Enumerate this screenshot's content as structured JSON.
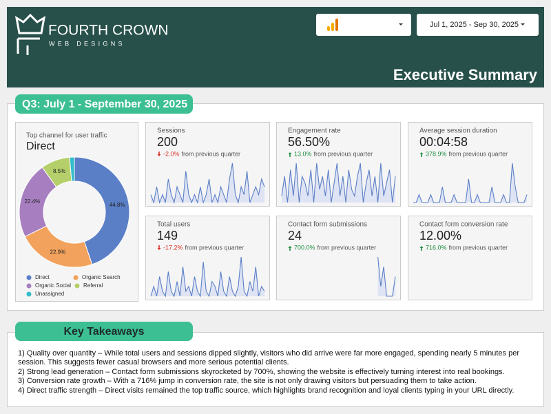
{
  "header": {
    "brand": "FOURTH CROWN",
    "tagline": "WEB DESIGNS",
    "date_range": "Jul 1, 2025 - Sep 30, 2025",
    "title": "Executive Summary"
  },
  "summary": {
    "heading": "Q3: July 1 - September 30, 2025",
    "top_channel": {
      "caption": "Top channel for user traffic",
      "value": "Direct",
      "chart": {
        "type": "donut",
        "categories": [
          "Direct",
          "Organic Search",
          "Organic Social",
          "Referral",
          "Unassigned"
        ],
        "values": [
          44.8,
          22.9,
          22.4,
          8.5,
          1.4
        ],
        "value_labels": [
          "44.8%",
          "22.9%",
          "22.4%",
          "8.5%",
          null
        ],
        "colors": [
          "#5b7fc7",
          "#f2a25c",
          "#a77fc0",
          "#b5cf6b",
          "#33bccc"
        ]
      }
    },
    "cards": [
      {
        "title": "Sessions",
        "value": "200",
        "change": "-2.0%",
        "comparison": "from previous quarter",
        "sparkline": [
          2,
          1,
          3,
          1,
          2,
          1,
          4,
          2,
          1,
          3,
          2,
          1,
          5,
          2,
          1,
          2,
          1,
          3,
          1,
          2,
          4,
          1,
          2,
          1,
          3,
          2,
          1,
          4,
          6,
          2,
          1,
          3,
          2,
          5,
          1,
          2,
          3,
          2,
          4,
          3
        ]
      },
      {
        "title": "Engagement rate",
        "value": "56.50%",
        "change": "13.0%",
        "comparison": "from previous quarter",
        "sparkline": [
          3,
          6,
          2,
          7,
          3,
          8,
          2,
          6,
          5,
          3,
          7,
          2,
          8,
          4,
          6,
          3,
          7,
          2,
          5,
          8,
          3,
          6,
          2,
          7,
          4,
          3,
          6,
          8,
          2,
          5,
          7,
          3,
          6,
          2,
          8,
          3,
          5,
          7,
          2,
          6
        ]
      },
      {
        "title": "Average session duration",
        "value": "00:04:58",
        "change": "378.9%",
        "comparison": "from previous quarter",
        "sparkline": [
          1,
          1,
          2,
          1,
          1,
          1,
          2,
          1,
          1,
          1,
          3,
          1,
          1,
          1,
          2,
          1,
          1,
          1,
          1,
          4,
          1,
          1,
          2,
          1,
          1,
          1,
          1,
          3,
          1,
          1,
          1,
          2,
          1,
          1,
          6,
          3,
          1,
          1,
          1,
          2
        ]
      },
      {
        "title": "Total users",
        "value": "149",
        "change": "-17.2%",
        "comparison": "from previous quarter",
        "sparkline": [
          1,
          3,
          1,
          5,
          2,
          1,
          6,
          2,
          1,
          4,
          1,
          7,
          2,
          3,
          1,
          5,
          2,
          1,
          8,
          2,
          1,
          4,
          3,
          1,
          6,
          2,
          1,
          5,
          2,
          1,
          3,
          9,
          2,
          1,
          4,
          2,
          7,
          1,
          3,
          2
        ]
      },
      {
        "title": "Contact form submissions",
        "value": "24",
        "change": "700.0%",
        "comparison": "from previous quarter",
        "sparkline": [
          null,
          null,
          null,
          null,
          null,
          null,
          null,
          null,
          null,
          null,
          null,
          null,
          null,
          null,
          null,
          null,
          null,
          null,
          null,
          null,
          null,
          null,
          null,
          null,
          null,
          null,
          null,
          null,
          null,
          null,
          null,
          null,
          null,
          4,
          1,
          3,
          0,
          0,
          0,
          2
        ]
      },
      {
        "title": "Contact form conversion rate",
        "value": "12.00%",
        "change": "716.0%",
        "comparison": "from previous quarter"
      }
    ]
  },
  "takeaways": {
    "heading": "Key Takeaways",
    "items": [
      "1) Quality over quantity – While total users and sessions dipped slightly, visitors who did arrive were far more engaged, spending nearly 5 minutes per session. This suggests fewer casual browsers and more serious potential clients.",
      "2) Strong lead generation – Contact form submissions skyrocketed by 700%, showing the website is effectively turning interest into real bookings.",
      "3) Conversion rate growth – With a 716% jump in conversion rate, the site is not only drawing visitors but persuading them to take action.",
      "4) Direct traffic strength – Direct visits remained the top traffic source, which highlights brand recognition and loyal clients typing in your URL directly."
    ]
  }
}
